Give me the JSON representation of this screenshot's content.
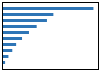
{
  "chart_data": {
    "type": "bar",
    "orientation": "horizontal",
    "categories": [
      null,
      null,
      null,
      null,
      null,
      null,
      null,
      null,
      null,
      null
    ],
    "values": [
      35.6,
      20.0,
      17.5,
      13.5,
      10.5,
      7.8,
      5.5,
      4.0,
      2.5,
      1.2
    ],
    "color": "#2e75b6",
    "xlim": [
      0,
      37.38
    ],
    "tick_labels": false
  }
}
